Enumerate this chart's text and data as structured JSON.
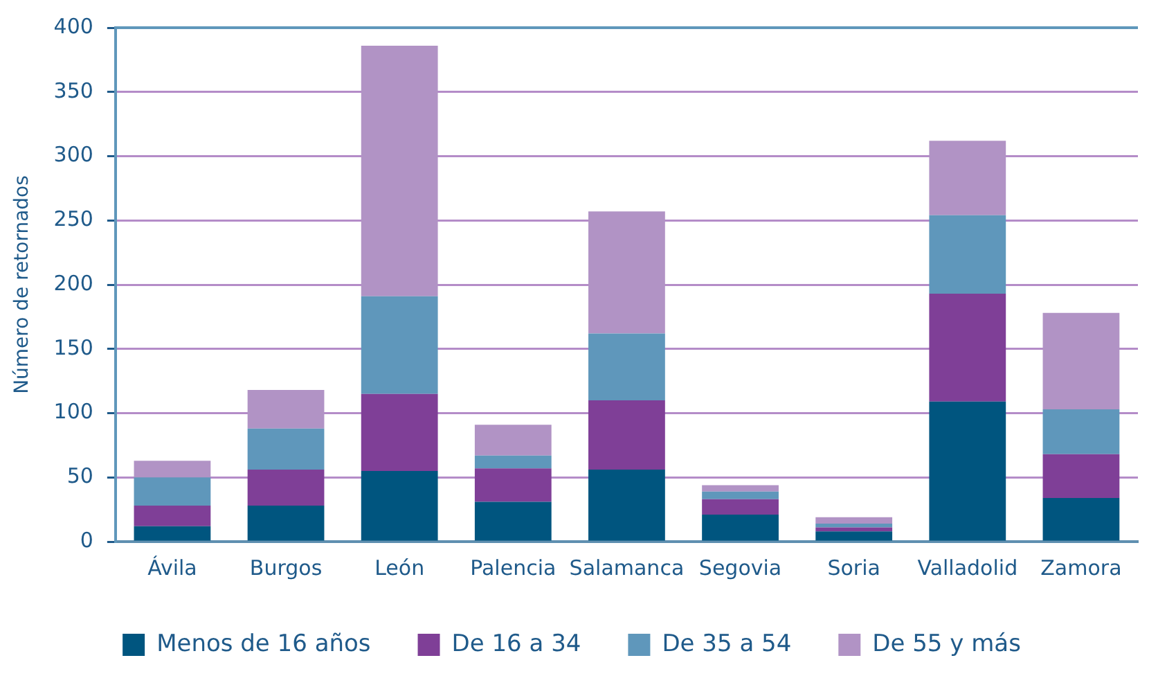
{
  "chart_data": {
    "type": "bar",
    "stacked": true,
    "ylabel": "Número de retornados",
    "categories": [
      "Ávila",
      "Burgos",
      "León",
      "Palencia",
      "Salamanca",
      "Segovia",
      "Soria",
      "Valladolid",
      "Zamora"
    ],
    "series": [
      {
        "name": "Menos de 16 años",
        "color": "#00557f",
        "values": [
          12,
          28,
          55,
          31,
          56,
          21,
          8,
          109,
          34
        ]
      },
      {
        "name": "De 16 a 34",
        "color": "#7f3f97",
        "values": [
          16,
          28,
          60,
          26,
          54,
          12,
          3,
          84,
          34
        ]
      },
      {
        "name": "De 35 a 54",
        "color": "#5f97bb",
        "values": [
          22,
          32,
          76,
          10,
          52,
          6,
          3,
          61,
          35
        ]
      },
      {
        "name": "De 55 y más",
        "color": "#b193c5",
        "values": [
          13,
          30,
          195,
          24,
          95,
          5,
          5,
          58,
          75
        ]
      }
    ],
    "ylim": [
      0,
      400
    ],
    "yticks": [
      0,
      50,
      100,
      150,
      200,
      250,
      300,
      350,
      400
    ],
    "grid": "y",
    "legend": "bottom"
  }
}
